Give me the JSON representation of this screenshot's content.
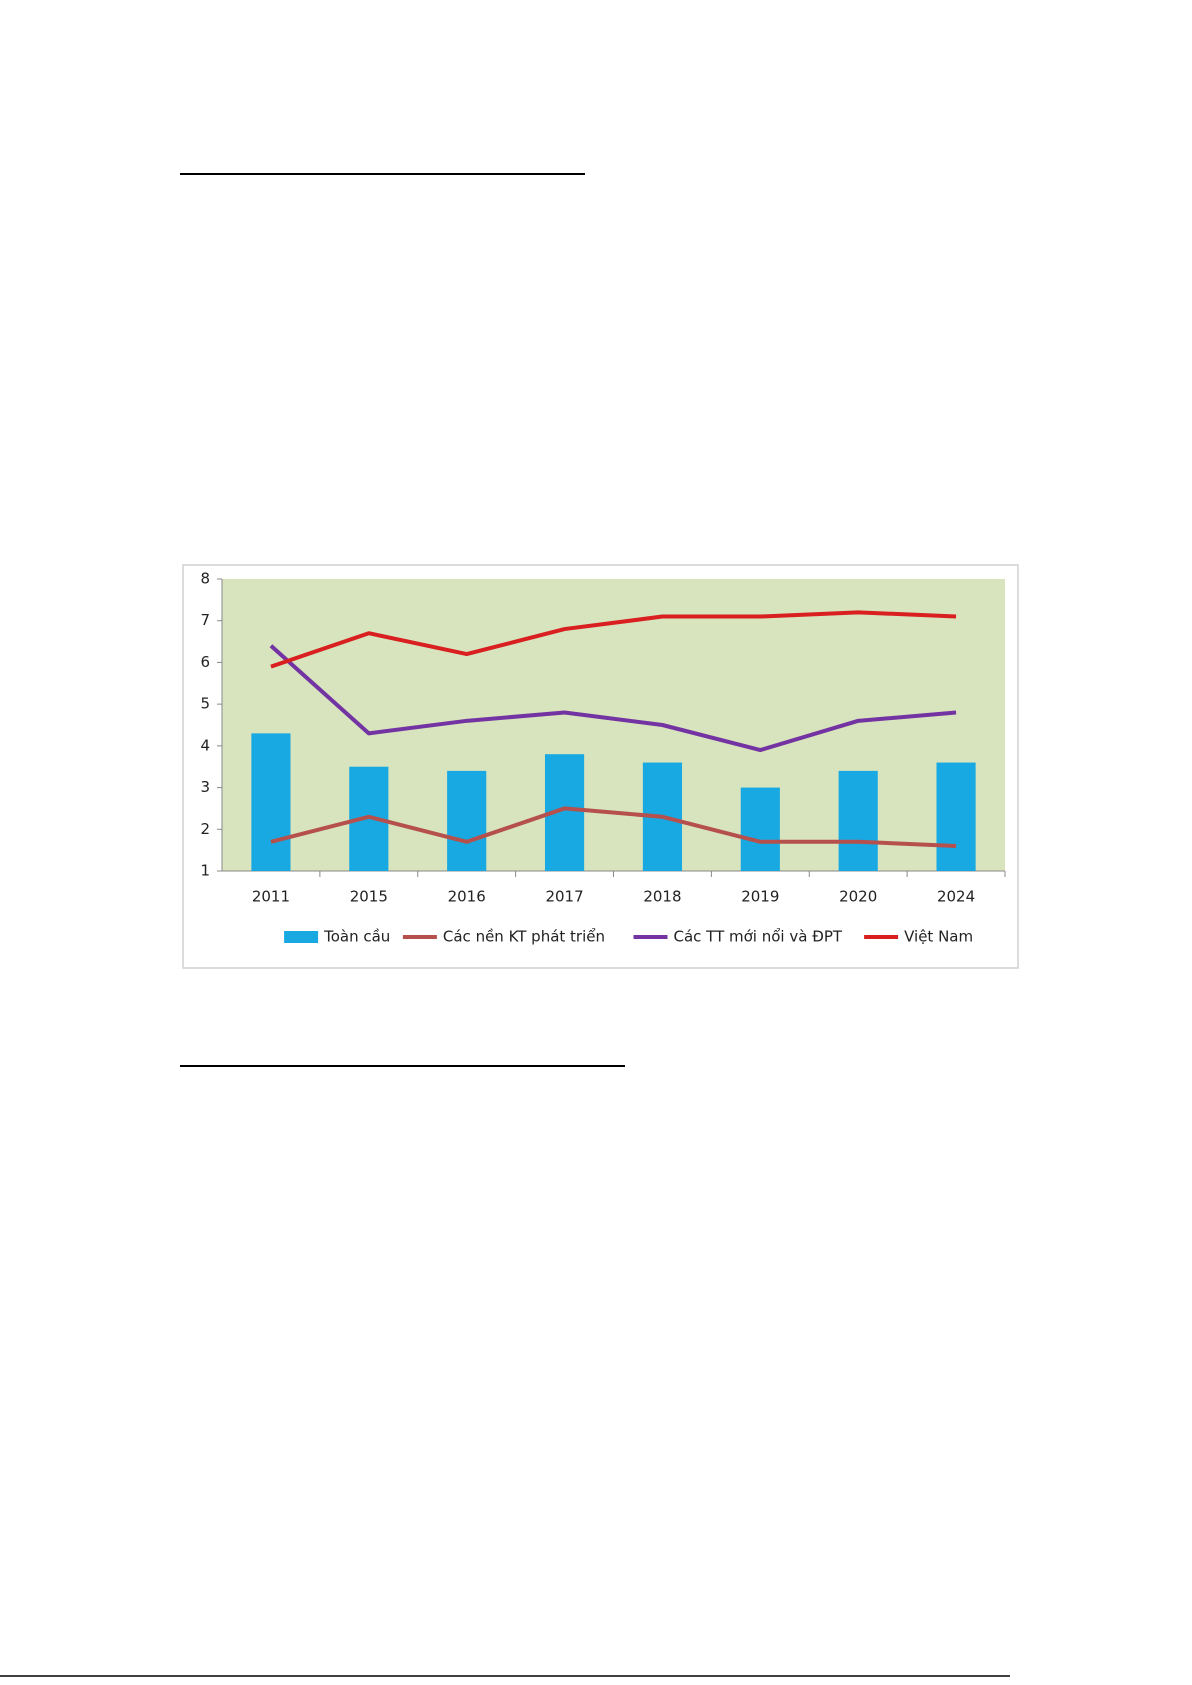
{
  "chart_data": {
    "type": "bar",
    "categories": [
      "2011",
      "2015",
      "2016",
      "2017",
      "2018",
      "2019",
      "2020",
      "2024"
    ],
    "series": [
      {
        "name": "Toàn cầu",
        "type": "bar",
        "color": "#19a9e2",
        "values": [
          4.3,
          3.5,
          3.4,
          3.8,
          3.6,
          3.0,
          3.4,
          3.6
        ]
      },
      {
        "name": "Các nền KT phát triển",
        "type": "line",
        "color": "#b5504d",
        "values": [
          1.7,
          2.3,
          1.7,
          2.5,
          2.3,
          1.7,
          1.7,
          1.6
        ]
      },
      {
        "name": "Các TT mới nổi và ĐPT",
        "type": "line",
        "color": "#7433a2",
        "values": [
          6.4,
          4.3,
          4.6,
          4.8,
          4.5,
          3.9,
          4.6,
          4.8
        ]
      },
      {
        "name": "Việt Nam",
        "type": "line",
        "color": "#d91f1f",
        "values": [
          5.9,
          6.7,
          6.2,
          6.8,
          7.1,
          7.1,
          7.2,
          7.1
        ]
      }
    ],
    "ylim": [
      1,
      8
    ],
    "yticks": [
      1,
      2,
      3,
      4,
      5,
      6,
      7,
      8
    ],
    "legend": "bottom"
  }
}
